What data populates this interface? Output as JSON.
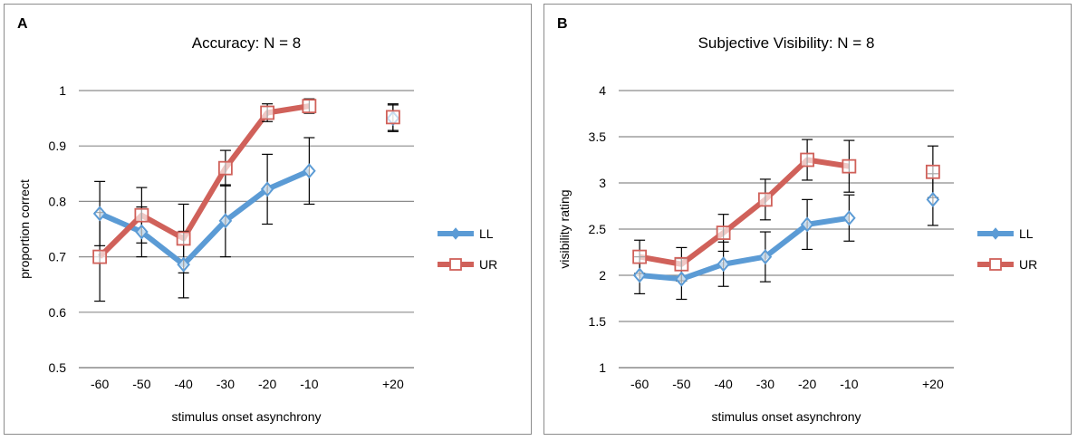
{
  "colors": {
    "LL": "#5b9bd5",
    "UR": "#d0615a",
    "grid": "#8c8c8c",
    "error": "#000000"
  },
  "chart_data": [
    {
      "type": "line",
      "panel_label": "A",
      "title": "Accuracy: N = 8",
      "xlabel": "stimulus onset asynchrony",
      "ylabel": "proportion correct",
      "categories": [
        "-60",
        "-50",
        "-40",
        "-30",
        "-20",
        "-10",
        "",
        "+20"
      ],
      "ylim": [
        0.5,
        1.0
      ],
      "yticks": [
        0.5,
        0.6,
        0.7,
        0.8,
        0.9,
        1
      ],
      "ytick_labels": [
        "0.5",
        "0.6",
        "0.7",
        "0.8",
        "0.9",
        "1"
      ],
      "grid": true,
      "legend": "right",
      "series": [
        {
          "name": "LL",
          "marker": "diamond",
          "values": [
            0.778,
            0.745,
            0.686,
            0.765,
            0.822,
            0.855,
            null,
            0.95
          ],
          "errors": [
            0.058,
            0.045,
            0.06,
            0.065,
            0.063,
            0.06,
            null,
            0.024
          ]
        },
        {
          "name": "UR",
          "marker": "square",
          "values": [
            0.7,
            0.775,
            0.733,
            0.86,
            0.96,
            0.972,
            null,
            0.952
          ],
          "errors": [
            0.08,
            0.05,
            0.062,
            0.032,
            0.016,
            0.013,
            null,
            0.024
          ]
        }
      ]
    },
    {
      "type": "line",
      "panel_label": "B",
      "title": "Subjective Visibility: N = 8",
      "xlabel": "stimulus onset asynchrony",
      "ylabel": "visibility rating",
      "categories": [
        "-60",
        "-50",
        "-40",
        "-30",
        "-20",
        "-10",
        "",
        "+20"
      ],
      "ylim": [
        1,
        4
      ],
      "yticks": [
        1,
        1.5,
        2,
        2.5,
        3,
        3.5,
        4
      ],
      "ytick_labels": [
        "1",
        "1.5",
        "2",
        "2.5",
        "3",
        "3.5",
        "4"
      ],
      "grid": true,
      "legend": "right",
      "series": [
        {
          "name": "LL",
          "marker": "diamond",
          "values": [
            2.0,
            1.96,
            2.12,
            2.2,
            2.55,
            2.62,
            null,
            2.82
          ],
          "errors": [
            0.2,
            0.22,
            0.24,
            0.27,
            0.27,
            0.25,
            null,
            0.28
          ]
        },
        {
          "name": "UR",
          "marker": "square",
          "values": [
            2.2,
            2.12,
            2.46,
            2.82,
            3.25,
            3.18,
            null,
            3.12
          ],
          "errors": [
            0.18,
            0.18,
            0.2,
            0.22,
            0.22,
            0.28,
            null,
            0.28
          ]
        }
      ]
    }
  ]
}
